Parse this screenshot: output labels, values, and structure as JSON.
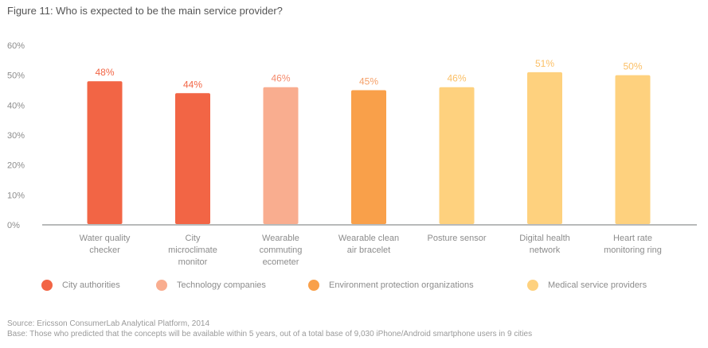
{
  "chart_data": {
    "type": "bar",
    "title": "Figure 11: Who is expected to be the main service provider?",
    "xlabel": "",
    "ylabel": "",
    "ylim": [
      0,
      60
    ],
    "yticks": [
      0,
      10,
      20,
      30,
      40,
      50,
      60
    ],
    "ytick_labels": [
      "0%",
      "10%",
      "20%",
      "30%",
      "40%",
      "50%",
      "60%"
    ],
    "grid": false,
    "categories": [
      [
        "Water quality",
        "checker"
      ],
      [
        "City",
        "microclimate",
        "monitor"
      ],
      [
        "Wearable",
        "commuting",
        "ecometer"
      ],
      [
        "Wearable clean",
        "air bracelet"
      ],
      [
        "Posture sensor"
      ],
      [
        "Digital health",
        "network"
      ],
      [
        "Heart rate",
        "monitoring ring"
      ]
    ],
    "values": [
      48,
      44,
      46,
      45,
      46,
      51,
      50
    ],
    "data_labels": [
      "48%",
      "44%",
      "46%",
      "45%",
      "46%",
      "51%",
      "50%"
    ],
    "bar_series": [
      0,
      0,
      1,
      2,
      3,
      3,
      3
    ],
    "legend_position": "bottom",
    "legend": [
      {
        "name": "City authorities",
        "color": "#f26545"
      },
      {
        "name": "Technology companies",
        "color": "#f9ad8f"
      },
      {
        "name": "Environment protection organizations",
        "color": "#f9a04a"
      },
      {
        "name": "Medical service providers",
        "color": "#fed17e"
      }
    ],
    "label_colors": [
      "#f26545",
      "#f26545",
      "#f58a6c",
      "#f5a068",
      "#fbc067",
      "#fbc067",
      "#fbc067"
    ]
  },
  "footer": {
    "source": "Source: Ericsson ConsumerLab Analytical Platform, 2014",
    "base": "Base: Those who predicted that the concepts will be available within 5 years, out of a total base of 9,030 iPhone/Android smartphone users in 9 cities"
  }
}
